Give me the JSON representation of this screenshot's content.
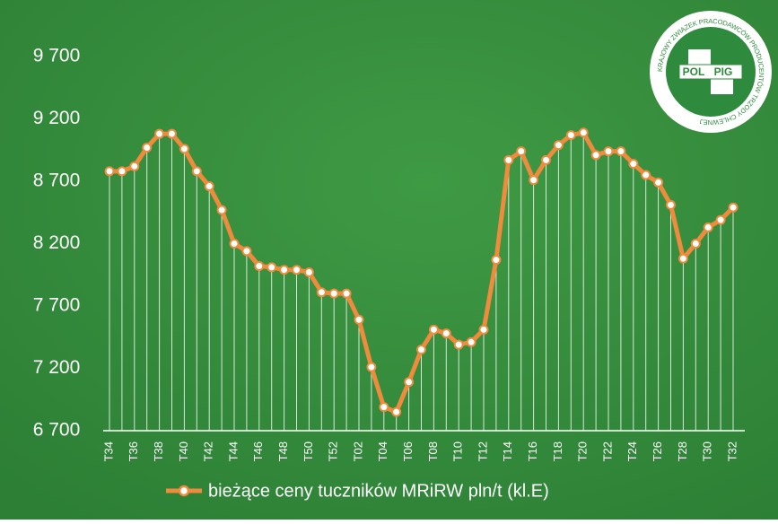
{
  "chart_data": {
    "type": "line",
    "categories": [
      "T34",
      null,
      "T36",
      null,
      "T38",
      null,
      "T40",
      null,
      "T42",
      null,
      "T44",
      null,
      "T46",
      null,
      "T48",
      null,
      "T50",
      null,
      "T52",
      null,
      "T02",
      null,
      "T04",
      null,
      "T06",
      null,
      "T08",
      null,
      "T10",
      null,
      "T12",
      null,
      "T14",
      null,
      "T16",
      null,
      "T18",
      null,
      "T20",
      null,
      "T22",
      null,
      "T24",
      null,
      "T26",
      null,
      "T28",
      null,
      "T30",
      null,
      "T32"
    ],
    "series": [
      {
        "name": "bieżące ceny tuczników MRiRW pln/t (kl.E)",
        "color": "#f08a3c",
        "values": [
          8780,
          8780,
          8820,
          8970,
          9080,
          9080,
          8960,
          8780,
          8660,
          8470,
          8200,
          8140,
          8020,
          8010,
          7990,
          7990,
          7970,
          7810,
          7800,
          7800,
          7590,
          7210,
          6890,
          6850,
          7090,
          7350,
          7510,
          7480,
          7390,
          7410,
          7510,
          8070,
          8870,
          8940,
          8710,
          8870,
          8990,
          9070,
          9090,
          8910,
          8940,
          8940,
          8840,
          8750,
          8690,
          8510,
          8080,
          8200,
          8330,
          8390,
          8490
        ]
      }
    ],
    "ylim": [
      6700,
      9700
    ],
    "yticks": [
      {
        "value": 6700,
        "label": "6 700"
      },
      {
        "value": 7200,
        "label": "7 200"
      },
      {
        "value": 7700,
        "label": "7 700"
      },
      {
        "value": 8200,
        "label": "8 200"
      },
      {
        "value": 8700,
        "label": "8 700"
      },
      {
        "value": 9200,
        "label": "9 200"
      },
      {
        "value": 9700,
        "label": "9 700"
      }
    ],
    "legend": "bottom"
  },
  "logo": {
    "left": "POL",
    "right": "PIG",
    "ring": "KRAJOWY ZWIĄZEK PRACODAWCÓW PRODUCENTÓW TRZODY CHLEWNEJ"
  }
}
